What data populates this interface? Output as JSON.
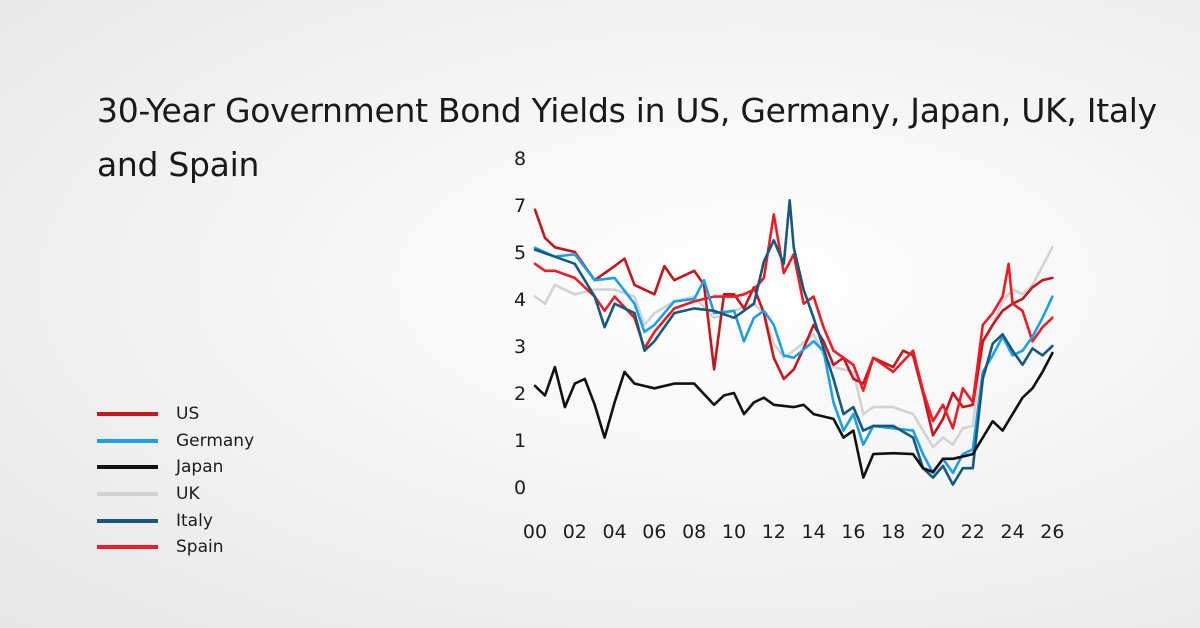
{
  "chart_data": {
    "type": "line",
    "title": "30-Year Government Bond Yields in US, Germany, Japan, UK, Italy and Spain",
    "xlabel": "",
    "ylabel": "",
    "xlim": [
      2000,
      2026
    ],
    "x_ticks": [
      2000,
      2002,
      2004,
      2006,
      2008,
      2010,
      2012,
      2014,
      2016,
      2018,
      2020,
      2022,
      2024,
      2026
    ],
    "x_tick_labels": [
      "00",
      "02",
      "04",
      "06",
      "08",
      "10",
      "12",
      "14",
      "16",
      "18",
      "20",
      "22",
      "24",
      "26"
    ],
    "y_ticks": [
      0,
      1,
      2,
      3,
      4,
      5,
      7,
      8
    ],
    "y_tick_labels": [
      "0",
      "1",
      "2",
      "3",
      "4",
      "5",
      "7",
      "8"
    ],
    "ylim": [
      0,
      8
    ],
    "grid": false,
    "legend_placement": "left",
    "series": [
      {
        "name": "US",
        "color": "#c4161c",
        "points": [
          [
            2000,
            6.8
          ],
          [
            2000.5,
            5.6
          ],
          [
            2001,
            5.2
          ],
          [
            2002,
            5.0
          ],
          [
            2003,
            4.4
          ],
          [
            2004,
            4.7
          ],
          [
            2004.5,
            4.86
          ],
          [
            2005,
            4.3
          ],
          [
            2006,
            4.1
          ],
          [
            2006.5,
            4.7
          ],
          [
            2007,
            4.4
          ],
          [
            2008,
            4.6
          ],
          [
            2008.5,
            4.3
          ],
          [
            2009,
            2.5
          ],
          [
            2009.5,
            4.1
          ],
          [
            2010,
            4.1
          ],
          [
            2010.5,
            3.8
          ],
          [
            2011,
            4.25
          ],
          [
            2011.5,
            3.7
          ],
          [
            2012,
            2.75
          ],
          [
            2012.5,
            2.3
          ],
          [
            2013,
            2.5
          ],
          [
            2013.5,
            2.95
          ],
          [
            2014,
            3.45
          ],
          [
            2014.5,
            3.1
          ],
          [
            2015,
            2.6
          ],
          [
            2015.5,
            2.75
          ],
          [
            2016,
            2.3
          ],
          [
            2016.5,
            2.2
          ],
          [
            2017,
            2.75
          ],
          [
            2018,
            2.55
          ],
          [
            2018.5,
            2.9
          ],
          [
            2019,
            2.8
          ],
          [
            2019.5,
            2.0
          ],
          [
            2020,
            1.1
          ],
          [
            2020.5,
            1.45
          ],
          [
            2021,
            2.0
          ],
          [
            2021.5,
            1.7
          ],
          [
            2022,
            1.75
          ],
          [
            2022.5,
            3.1
          ],
          [
            2023,
            3.45
          ],
          [
            2023.5,
            3.75
          ],
          [
            2024,
            3.9
          ],
          [
            2024.5,
            4.0
          ],
          [
            2025,
            4.25
          ],
          [
            2025.5,
            4.4
          ],
          [
            2026,
            4.45
          ]
        ]
      },
      {
        "name": "Germany",
        "color": "#1ea0e6",
        "points": [
          [
            2000,
            5.18
          ],
          [
            2001,
            4.9
          ],
          [
            2002,
            4.95
          ],
          [
            2003,
            4.4
          ],
          [
            2004,
            4.45
          ],
          [
            2005,
            3.9
          ],
          [
            2005.5,
            3.3
          ],
          [
            2006,
            3.45
          ],
          [
            2007,
            3.95
          ],
          [
            2008,
            4.0
          ],
          [
            2008.5,
            4.4
          ],
          [
            2009,
            3.7
          ],
          [
            2010,
            3.75
          ],
          [
            2010.5,
            3.1
          ],
          [
            2011,
            3.6
          ],
          [
            2011.5,
            3.75
          ],
          [
            2012,
            3.45
          ],
          [
            2012.5,
            2.8
          ],
          [
            2013,
            2.75
          ],
          [
            2014,
            3.1
          ],
          [
            2014.5,
            2.9
          ],
          [
            2015,
            1.8
          ],
          [
            2015.5,
            1.2
          ],
          [
            2016,
            1.55
          ],
          [
            2016.5,
            0.9
          ],
          [
            2017,
            1.3
          ],
          [
            2018,
            1.25
          ],
          [
            2019,
            1.2
          ],
          [
            2019.5,
            0.7
          ],
          [
            2020,
            0.3
          ],
          [
            2020.5,
            0.6
          ],
          [
            2021,
            0.3
          ],
          [
            2021.5,
            0.7
          ],
          [
            2022,
            0.8
          ],
          [
            2022.5,
            2.45
          ],
          [
            2023,
            2.8
          ],
          [
            2023.5,
            3.2
          ],
          [
            2024,
            2.8
          ],
          [
            2024.5,
            2.9
          ],
          [
            2025,
            3.2
          ],
          [
            2025.5,
            3.6
          ],
          [
            2026,
            4.05
          ]
        ]
      },
      {
        "name": "Japan",
        "color": "#111111",
        "points": [
          [
            2000,
            2.15
          ],
          [
            2000.5,
            1.95
          ],
          [
            2001,
            2.55
          ],
          [
            2001.5,
            1.7
          ],
          [
            2002,
            2.2
          ],
          [
            2002.5,
            2.3
          ],
          [
            2003,
            1.75
          ],
          [
            2003.5,
            1.05
          ],
          [
            2004,
            1.8
          ],
          [
            2004.5,
            2.45
          ],
          [
            2005,
            2.2
          ],
          [
            2006,
            2.1
          ],
          [
            2007,
            2.2
          ],
          [
            2008,
            2.2
          ],
          [
            2009,
            1.75
          ],
          [
            2009.5,
            1.95
          ],
          [
            2010,
            2.0
          ],
          [
            2010.5,
            1.55
          ],
          [
            2011,
            1.8
          ],
          [
            2011.5,
            1.9
          ],
          [
            2012,
            1.75
          ],
          [
            2013,
            1.7
          ],
          [
            2013.5,
            1.75
          ],
          [
            2014,
            1.55
          ],
          [
            2015,
            1.45
          ],
          [
            2015.5,
            1.05
          ],
          [
            2016,
            1.2
          ],
          [
            2016.5,
            0.2
          ],
          [
            2017,
            0.7
          ],
          [
            2018,
            0.72
          ],
          [
            2019,
            0.7
          ],
          [
            2019.5,
            0.4
          ],
          [
            2020,
            0.32
          ],
          [
            2020.5,
            0.6
          ],
          [
            2021,
            0.6
          ],
          [
            2022,
            0.7
          ],
          [
            2022.5,
            1.05
          ],
          [
            2023,
            1.4
          ],
          [
            2023.5,
            1.2
          ],
          [
            2024,
            1.55
          ],
          [
            2024.5,
            1.9
          ],
          [
            2025,
            2.1
          ],
          [
            2025.5,
            2.45
          ],
          [
            2026,
            2.85
          ]
        ]
      },
      {
        "name": "UK",
        "color": "#d2d2d2",
        "points": [
          [
            2000,
            4.05
          ],
          [
            2000.5,
            3.9
          ],
          [
            2001,
            4.3
          ],
          [
            2002,
            4.1
          ],
          [
            2003,
            4.2
          ],
          [
            2004,
            4.2
          ],
          [
            2005,
            4.05
          ],
          [
            2005.5,
            3.45
          ],
          [
            2006,
            3.7
          ],
          [
            2007,
            3.95
          ],
          [
            2008,
            4.05
          ],
          [
            2009,
            3.6
          ],
          [
            2010,
            3.75
          ],
          [
            2011,
            3.9
          ],
          [
            2011.5,
            3.7
          ],
          [
            2012,
            3.05
          ],
          [
            2012.5,
            2.75
          ],
          [
            2013,
            2.9
          ],
          [
            2014,
            3.25
          ],
          [
            2014.5,
            2.8
          ],
          [
            2015,
            2.55
          ],
          [
            2016,
            2.45
          ],
          [
            2016.5,
            1.55
          ],
          [
            2017,
            1.7
          ],
          [
            2018,
            1.7
          ],
          [
            2019,
            1.55
          ],
          [
            2019.5,
            1.2
          ],
          [
            2020,
            0.85
          ],
          [
            2020.5,
            1.05
          ],
          [
            2021,
            0.9
          ],
          [
            2021.5,
            1.25
          ],
          [
            2022,
            1.3
          ],
          [
            2022.5,
            3.05
          ],
          [
            2023,
            3.45
          ],
          [
            2023.5,
            3.95
          ],
          [
            2024,
            4.2
          ],
          [
            2024.5,
            4.1
          ],
          [
            2025,
            4.3
          ],
          [
            2025.5,
            4.7
          ],
          [
            2026,
            5.2
          ]
        ]
      },
      {
        "name": "Italy",
        "color": "#155a7d",
        "points": [
          [
            2000,
            5.1
          ],
          [
            2001,
            4.9
          ],
          [
            2002,
            4.75
          ],
          [
            2003,
            4.05
          ],
          [
            2003.5,
            3.4
          ],
          [
            2004,
            3.9
          ],
          [
            2005,
            3.7
          ],
          [
            2005.5,
            2.9
          ],
          [
            2006,
            3.1
          ],
          [
            2007,
            3.7
          ],
          [
            2008,
            3.8
          ],
          [
            2009,
            3.75
          ],
          [
            2010,
            3.6
          ],
          [
            2010.5,
            3.75
          ],
          [
            2011,
            3.9
          ],
          [
            2011.5,
            4.8
          ],
          [
            2012,
            5.5
          ],
          [
            2012.5,
            4.75
          ],
          [
            2012.8,
            7.1
          ],
          [
            2013,
            5.2
          ],
          [
            2013.5,
            4.2
          ],
          [
            2014,
            3.6
          ],
          [
            2015,
            2.3
          ],
          [
            2015.5,
            1.55
          ],
          [
            2016,
            1.7
          ],
          [
            2016.5,
            1.2
          ],
          [
            2017,
            1.3
          ],
          [
            2018,
            1.3
          ],
          [
            2019,
            1.05
          ],
          [
            2019.5,
            0.4
          ],
          [
            2020,
            0.2
          ],
          [
            2020.5,
            0.45
          ],
          [
            2021,
            0.05
          ],
          [
            2021.5,
            0.4
          ],
          [
            2022,
            0.4
          ],
          [
            2022.5,
            2.3
          ],
          [
            2023,
            3.05
          ],
          [
            2023.5,
            3.25
          ],
          [
            2024,
            2.9
          ],
          [
            2024.5,
            2.6
          ],
          [
            2025,
            2.95
          ],
          [
            2025.5,
            2.8
          ],
          [
            2026,
            3.0
          ]
        ]
      },
      {
        "name": "Spain",
        "color": "#ee1c25",
        "points": [
          [
            2000,
            4.75
          ],
          [
            2000.5,
            4.6
          ],
          [
            2001,
            4.6
          ],
          [
            2002,
            4.45
          ],
          [
            2003,
            4.05
          ],
          [
            2003.5,
            3.75
          ],
          [
            2004,
            4.05
          ],
          [
            2005,
            3.6
          ],
          [
            2005.5,
            2.95
          ],
          [
            2006,
            3.3
          ],
          [
            2007,
            3.8
          ],
          [
            2008,
            3.95
          ],
          [
            2009,
            4.05
          ],
          [
            2010,
            4.05
          ],
          [
            2010.5,
            4.1
          ],
          [
            2011,
            4.2
          ],
          [
            2011.5,
            4.45
          ],
          [
            2012,
            6.6
          ],
          [
            2012.5,
            4.55
          ],
          [
            2013,
            4.95
          ],
          [
            2013.5,
            3.9
          ],
          [
            2014,
            4.05
          ],
          [
            2014.5,
            3.4
          ],
          [
            2015,
            2.9
          ],
          [
            2016,
            2.6
          ],
          [
            2016.5,
            2.05
          ],
          [
            2017,
            2.75
          ],
          [
            2018,
            2.45
          ],
          [
            2019,
            2.9
          ],
          [
            2019.5,
            2.05
          ],
          [
            2020,
            1.4
          ],
          [
            2020.5,
            1.75
          ],
          [
            2021,
            1.25
          ],
          [
            2021.5,
            2.1
          ],
          [
            2022,
            1.8
          ],
          [
            2022.5,
            3.45
          ],
          [
            2023,
            3.7
          ],
          [
            2023.5,
            4.05
          ],
          [
            2023.8,
            4.75
          ],
          [
            2024,
            3.9
          ],
          [
            2024.5,
            3.75
          ],
          [
            2025,
            3.1
          ],
          [
            2025.5,
            3.4
          ],
          [
            2026,
            3.6
          ]
        ]
      }
    ]
  }
}
